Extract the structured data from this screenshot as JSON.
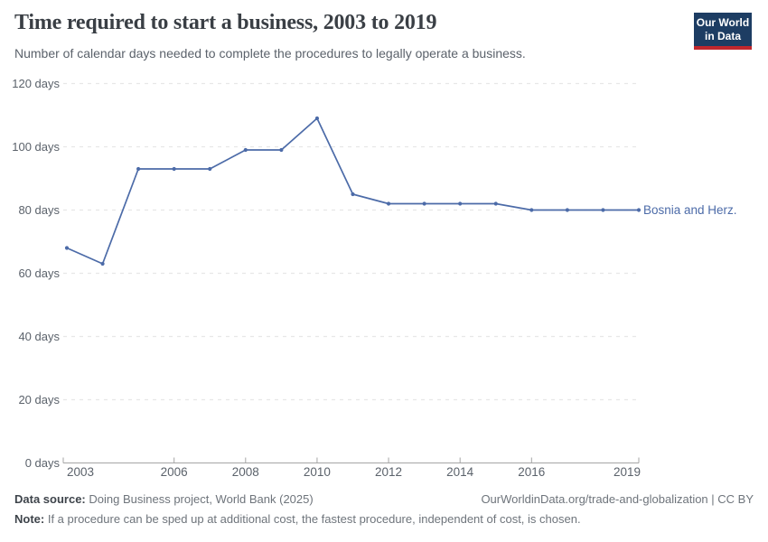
{
  "header": {
    "title": "Time required to start a business, 2003 to 2019",
    "subtitle": "Number of calendar days needed to complete the procedures to legally operate a business."
  },
  "logo": {
    "line1": "Our World",
    "line2": "in Data"
  },
  "chart_data": {
    "type": "line",
    "title": "Time required to start a business, 2003 to 2019",
    "xlabel": "",
    "ylabel": "days",
    "x": [
      2003,
      2004,
      2005,
      2006,
      2007,
      2008,
      2009,
      2010,
      2011,
      2012,
      2013,
      2014,
      2015,
      2016,
      2017,
      2018,
      2019
    ],
    "series": [
      {
        "name": "Bosnia and Herz.",
        "color": "#4c6ba8",
        "values": [
          68,
          63,
          93,
          93,
          93,
          99,
          99,
          109,
          85,
          82,
          82,
          82,
          82,
          80,
          80,
          80,
          80
        ]
      }
    ],
    "xticks": [
      2003,
      2006,
      2008,
      2010,
      2012,
      2014,
      2016,
      2019
    ],
    "yticks": [
      {
        "value": 0,
        "label": "0 days"
      },
      {
        "value": 20,
        "label": "20 days"
      },
      {
        "value": 40,
        "label": "40 days"
      },
      {
        "value": 60,
        "label": "60 days"
      },
      {
        "value": 80,
        "label": "80 days"
      },
      {
        "value": 100,
        "label": "100 days"
      },
      {
        "value": 120,
        "label": "120 days"
      }
    ],
    "ylim": [
      0,
      120
    ],
    "grid": true,
    "legend_position": "end-of-line-label",
    "colors": {
      "grid": "#e7e7e7",
      "axis": "#a5a5a5",
      "tick_text": "#5b626b"
    }
  },
  "footer": {
    "datasource_label": "Data source:",
    "datasource_text": "Doing Business project, World Bank (2025)",
    "credit": "OurWorldinData.org/trade-and-globalization | CC BY",
    "note_label": "Note:",
    "note_text": "If a procedure can be sped up at additional cost, the fastest procedure, independent of cost, is chosen."
  }
}
